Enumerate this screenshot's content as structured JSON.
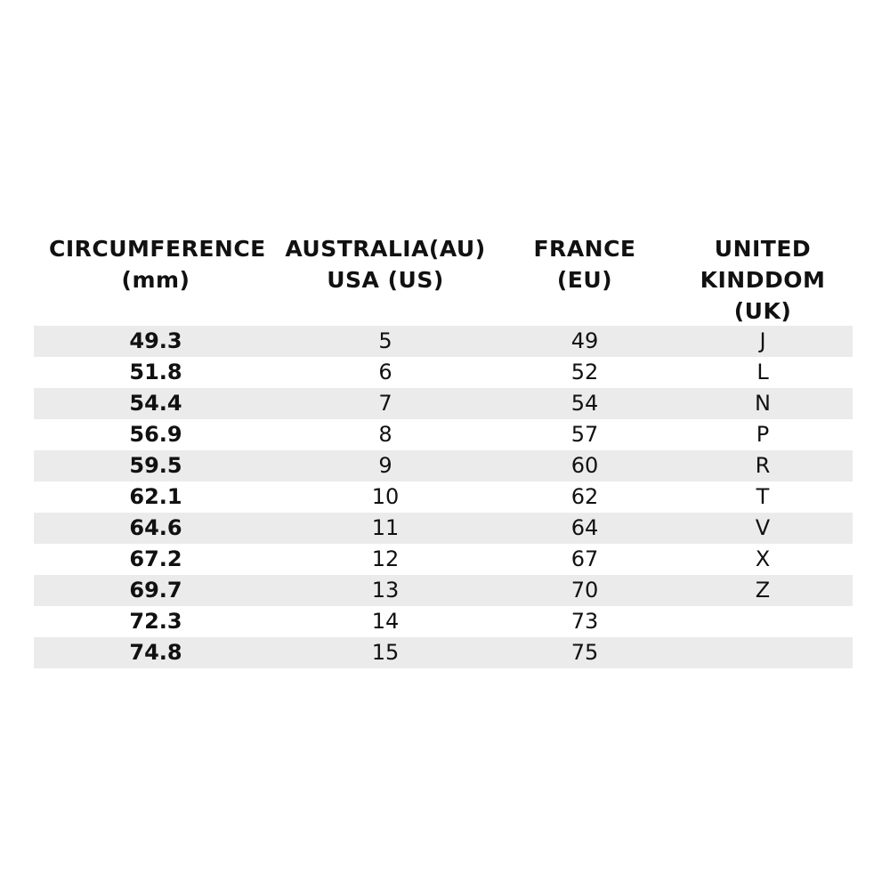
{
  "table": {
    "headers": [
      [
        "CIRCUMFERENCE",
        "(mm)"
      ],
      [
        "AUSTRALIA(AU)",
        "USA (US)"
      ],
      [
        "FRANCE",
        "(EU)"
      ],
      [
        "UNITED",
        "KINDDOM",
        "(UK)"
      ]
    ],
    "rows": [
      [
        "49.3",
        "5",
        "49",
        "J"
      ],
      [
        "51.8",
        "6",
        "52",
        "L"
      ],
      [
        "54.4",
        "7",
        "54",
        "N"
      ],
      [
        "56.9",
        "8",
        "57",
        "P"
      ],
      [
        "59.5",
        "9",
        "60",
        "R"
      ],
      [
        "62.1",
        "10",
        "62",
        "T"
      ],
      [
        "64.6",
        "11",
        "64",
        "V"
      ],
      [
        "67.2",
        "12",
        "67",
        "X"
      ],
      [
        "69.7",
        "13",
        "70",
        "Z"
      ],
      [
        "72.3",
        "14",
        "73"
      ],
      [
        "74.8",
        "15",
        "75"
      ]
    ]
  }
}
